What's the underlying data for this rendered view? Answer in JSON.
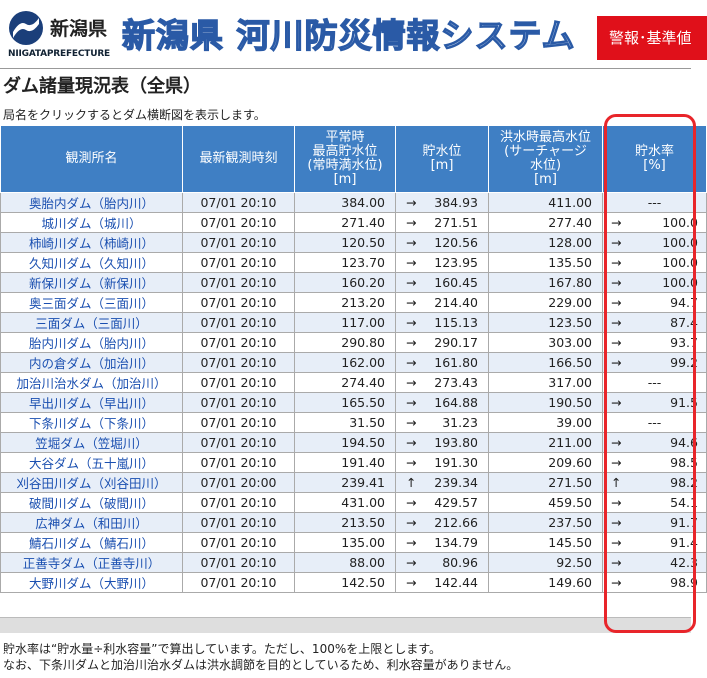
{
  "header": {
    "logo_ken": "新潟県",
    "logo_pref_a": "NIIGATA",
    "logo_pref_b": "PREFECTURE",
    "site_title": "新潟県 河川防災情報システム",
    "warning_button": "警報･基準値"
  },
  "page": {
    "title": "ダム諸量現況表（全県）",
    "instruction": "局名をクリックするとダム横断図を表示します。"
  },
  "table": {
    "headers": {
      "name": "観測所名",
      "time": "最新観測時刻",
      "normal_l1": "平常時",
      "normal_l2": "最高貯水位",
      "normal_l3": "(常時満水位)",
      "normal_l4": "[m]",
      "storage_l1": "貯水位",
      "storage_l2": "[m]",
      "flood_l1": "洪水時最高水位",
      "flood_l2": "(サーチャージ",
      "flood_l3": "水位)",
      "flood_l4": "[m]",
      "rate_l1": "貯水率",
      "rate_l2": "[%]"
    },
    "rows": [
      {
        "name": "奥胎内ダム（胎内川）",
        "time": "07/01 20:10",
        "normal": "384.00",
        "storage_arrow": "→",
        "storage": "384.93",
        "flood": "411.00",
        "rate_arrow": "",
        "rate": "---"
      },
      {
        "name": "城川ダム（城川）",
        "time": "07/01 20:10",
        "normal": "271.40",
        "storage_arrow": "→",
        "storage": "271.51",
        "flood": "277.40",
        "rate_arrow": "→",
        "rate": "100.0"
      },
      {
        "name": "柿崎川ダム（柿崎川）",
        "time": "07/01 20:10",
        "normal": "120.50",
        "storage_arrow": "→",
        "storage": "120.56",
        "flood": "128.00",
        "rate_arrow": "→",
        "rate": "100.0"
      },
      {
        "name": "久知川ダム（久知川）",
        "time": "07/01 20:10",
        "normal": "123.70",
        "storage_arrow": "→",
        "storage": "123.95",
        "flood": "135.50",
        "rate_arrow": "→",
        "rate": "100.0"
      },
      {
        "name": "新保川ダム（新保川）",
        "time": "07/01 20:10",
        "normal": "160.20",
        "storage_arrow": "→",
        "storage": "160.45",
        "flood": "167.80",
        "rate_arrow": "→",
        "rate": "100.0"
      },
      {
        "name": "奥三面ダム（三面川）",
        "time": "07/01 20:10",
        "normal": "213.20",
        "storage_arrow": "→",
        "storage": "214.40",
        "flood": "229.00",
        "rate_arrow": "→",
        "rate": "94.7"
      },
      {
        "name": "三面ダム（三面川）",
        "time": "07/01 20:10",
        "normal": "117.00",
        "storage_arrow": "→",
        "storage": "115.13",
        "flood": "123.50",
        "rate_arrow": "→",
        "rate": "87.4"
      },
      {
        "name": "胎内川ダム（胎内川）",
        "time": "07/01 20:10",
        "normal": "290.80",
        "storage_arrow": "→",
        "storage": "290.17",
        "flood": "303.00",
        "rate_arrow": "→",
        "rate": "93.7"
      },
      {
        "name": "内の倉ダム（加治川）",
        "time": "07/01 20:10",
        "normal": "162.00",
        "storage_arrow": "→",
        "storage": "161.80",
        "flood": "166.50",
        "rate_arrow": "→",
        "rate": "99.2"
      },
      {
        "name": "加治川治水ダム（加治川）",
        "time": "07/01 20:10",
        "normal": "274.40",
        "storage_arrow": "→",
        "storage": "273.43",
        "flood": "317.00",
        "rate_arrow": "",
        "rate": "---"
      },
      {
        "name": "早出川ダム（早出川）",
        "time": "07/01 20:10",
        "normal": "165.50",
        "storage_arrow": "→",
        "storage": "164.88",
        "flood": "190.50",
        "rate_arrow": "→",
        "rate": "91.5"
      },
      {
        "name": "下条川ダム（下条川）",
        "time": "07/01 20:10",
        "normal": "31.50",
        "storage_arrow": "→",
        "storage": "31.23",
        "flood": "39.00",
        "rate_arrow": "",
        "rate": "---"
      },
      {
        "name": "笠堀ダム（笠堀川）",
        "time": "07/01 20:10",
        "normal": "194.50",
        "storage_arrow": "→",
        "storage": "193.80",
        "flood": "211.00",
        "rate_arrow": "→",
        "rate": "94.6"
      },
      {
        "name": "大谷ダム（五十嵐川）",
        "time": "07/01 20:10",
        "normal": "191.40",
        "storage_arrow": "→",
        "storage": "191.30",
        "flood": "209.60",
        "rate_arrow": "→",
        "rate": "98.5"
      },
      {
        "name": "刈谷田川ダム（刈谷田川）",
        "time": "07/01 20:00",
        "normal": "239.41",
        "storage_arrow": "↑",
        "storage": "239.34",
        "flood": "271.50",
        "rate_arrow": "↑",
        "rate": "98.2"
      },
      {
        "name": "破間川ダム（破間川）",
        "time": "07/01 20:10",
        "normal": "431.00",
        "storage_arrow": "→",
        "storage": "429.57",
        "flood": "459.50",
        "rate_arrow": "→",
        "rate": "54.1"
      },
      {
        "name": "広神ダム（和田川）",
        "time": "07/01 20:10",
        "normal": "213.50",
        "storage_arrow": "→",
        "storage": "212.66",
        "flood": "237.50",
        "rate_arrow": "→",
        "rate": "91.7"
      },
      {
        "name": "鯖石川ダム（鯖石川）",
        "time": "07/01 20:10",
        "normal": "135.00",
        "storage_arrow": "→",
        "storage": "134.79",
        "flood": "145.50",
        "rate_arrow": "→",
        "rate": "91.4"
      },
      {
        "name": "正善寺ダム（正善寺川）",
        "time": "07/01 20:10",
        "normal": "88.00",
        "storage_arrow": "→",
        "storage": "80.96",
        "flood": "92.50",
        "rate_arrow": "→",
        "rate": "42.3"
      },
      {
        "name": "大野川ダム（大野川）",
        "time": "07/01 20:10",
        "normal": "142.50",
        "storage_arrow": "→",
        "storage": "142.44",
        "flood": "149.60",
        "rate_arrow": "→",
        "rate": "98.9"
      }
    ]
  },
  "notes": {
    "line1": "貯水率は“貯水量÷利水容量”で算出しています。ただし、100%を上限とします。",
    "line2": "なお、下条川ダムと加治川治水ダムは洪水調節を目的としているため、利水容量がありません。"
  },
  "colors": {
    "header_blue": "#3f7fc4",
    "row_alt": "#e7eef8",
    "warn_red": "#e0101a",
    "highlight_red": "#e8252a",
    "link_blue": "#1a4fb0"
  }
}
